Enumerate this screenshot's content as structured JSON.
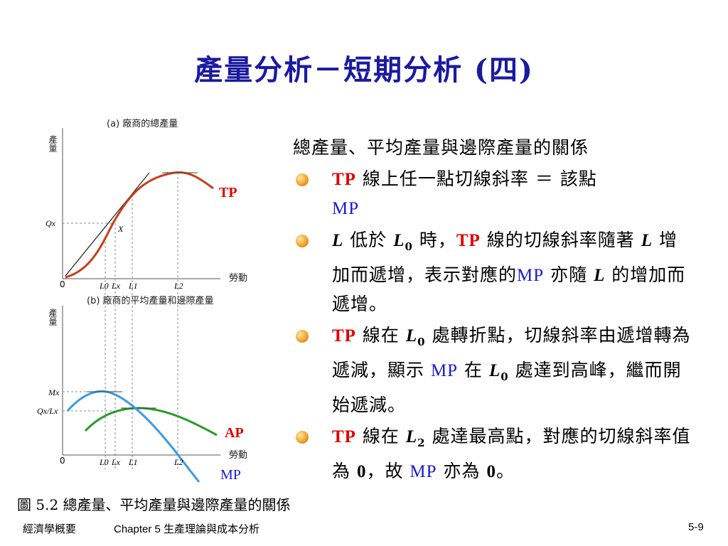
{
  "title": "產量分析－短期分析 (四)",
  "figure": {
    "panel_a_title": "(a) 廠商的總產量",
    "panel_b_title": "(b) 廠商的平均產量和邊際產量",
    "y_label": "產量",
    "x_label": "勞動",
    "origin": "0",
    "qx_label": "Qx",
    "x_point": "X",
    "mx_label": "Mx",
    "qxlx_label": "Qx/Lx",
    "ticks": [
      "L0",
      "Lx",
      "L1",
      "L2"
    ],
    "curves": {
      "tp": "TP",
      "ap": "AP",
      "mp": "MP"
    },
    "colors": {
      "tp": "#c8401a",
      "ap": "#2a9a2a",
      "mp": "#3a9ae8",
      "red_label": "#e00000",
      "blue_label": "#1a1ad0"
    }
  },
  "bullets": {
    "lead": "總產量、平均產量與邊際產量的關係",
    "b1": {
      "tp": "TP",
      "t1": " 線上任一點切線斜率 ＝ 該點",
      "mp": "MP"
    },
    "b2": {
      "l": "L",
      "t1": " 低於 ",
      "l0": "L",
      "sub0": "0",
      "t2": " 時，",
      "tp": "TP",
      "t3": " 線的切線斜率隨著 ",
      "l2": "L",
      "t4": " 增加而遞增，表示對應的",
      "mp": "MP",
      "t5": " 亦隨 ",
      "l3": "L",
      "t6": " 的增加而遞增。"
    },
    "b3": {
      "tp": "TP",
      "t1": " 線在 ",
      "l0": "L",
      "sub0": "0",
      "t2": " 處轉折點，切線斜率由遞增轉為遞減，顯示 ",
      "mp": "MP",
      "t3": " 在 ",
      "l1": "L",
      "sub1": "0",
      "t4": " 處達到高峰，繼而開始遞減。"
    },
    "b4": {
      "tp": "TP",
      "t1": " 線在 ",
      "l2": "L",
      "sub2": "2",
      "t2": " 處達最高點，對應的切線斜率值為 ",
      "zero": "0",
      "t3": "，故 ",
      "mp": "MP",
      "t4": " 亦為 ",
      "zero2": "0",
      "t5": "。"
    }
  },
  "caption": "圖 5.2 總產量、平均產量與邊際產量的關係",
  "footer": {
    "left": "經濟學概要",
    "mid": "Chapter 5 生產理論與成本分析",
    "right": "5-9"
  }
}
